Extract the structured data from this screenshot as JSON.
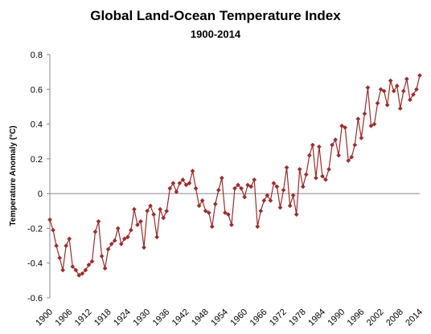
{
  "colors": {
    "series": "#9c2b2b",
    "axis": "#888888"
  },
  "chart_data": {
    "type": "line",
    "title": "Global Land-Ocean Temperature Index",
    "subtitle": "1900-2014",
    "xlabel": "",
    "ylabel": "Temperature Anomaly (°C)",
    "ylim": [
      -0.6,
      0.8
    ],
    "yticks": [
      "-0.6",
      "-0.4",
      "-0.2",
      "0",
      "0.2",
      "0.4",
      "0.6",
      "0.8"
    ],
    "xlim": [
      1900,
      2014
    ],
    "xticks": [
      "1900",
      "1906",
      "1912",
      "1918",
      "1924",
      "1930",
      "1936",
      "1942",
      "1948",
      "1954",
      "1960",
      "1966",
      "1972",
      "1978",
      "1984",
      "1990",
      "1996",
      "2002",
      "2008",
      "2014"
    ],
    "grid": false,
    "legend": "none",
    "series": [
      {
        "x": [
          1900,
          1901,
          1902,
          1903,
          1904,
          1905,
          1906,
          1907,
          1908,
          1909,
          1910,
          1911,
          1912,
          1913,
          1914,
          1915,
          1916,
          1917,
          1918,
          1919,
          1920,
          1921,
          1922,
          1923,
          1924,
          1925,
          1926,
          1927,
          1928,
          1929,
          1930,
          1931,
          1932,
          1933,
          1934,
          1935,
          1936,
          1937,
          1938,
          1939,
          1940,
          1941,
          1942,
          1943,
          1944,
          1945,
          1946,
          1947,
          1948,
          1949,
          1950,
          1951,
          1952,
          1953,
          1954,
          1955,
          1956,
          1957,
          1958,
          1959,
          1960,
          1961,
          1962,
          1963,
          1964,
          1965,
          1966,
          1967,
          1968,
          1969,
          1970,
          1971,
          1972,
          1973,
          1974,
          1975,
          1976,
          1977,
          1978,
          1979,
          1980,
          1981,
          1982,
          1983,
          1984,
          1985,
          1986,
          1987,
          1988,
          1989,
          1990,
          1991,
          1992,
          1993,
          1994,
          1995,
          1996,
          1997,
          1998,
          1999,
          2000,
          2001,
          2002,
          2003,
          2004,
          2005,
          2006,
          2007,
          2008,
          2009,
          2010,
          2011,
          2012,
          2013,
          2014
        ],
        "values": [
          -0.15,
          -0.21,
          -0.3,
          -0.37,
          -0.44,
          -0.3,
          -0.26,
          -0.42,
          -0.44,
          -0.47,
          -0.46,
          -0.44,
          -0.41,
          -0.39,
          -0.22,
          -0.16,
          -0.36,
          -0.43,
          -0.32,
          -0.29,
          -0.27,
          -0.2,
          -0.29,
          -0.26,
          -0.25,
          -0.21,
          -0.09,
          -0.18,
          -0.16,
          -0.31,
          -0.1,
          -0.07,
          -0.12,
          -0.25,
          -0.09,
          -0.14,
          -0.1,
          0.03,
          0.06,
          0.01,
          0.06,
          0.08,
          0.05,
          0.06,
          0.13,
          0.03,
          -0.07,
          -0.04,
          -0.1,
          -0.11,
          -0.19,
          -0.06,
          0.02,
          0.09,
          -0.11,
          -0.12,
          -0.18,
          0.03,
          0.05,
          0.03,
          -0.02,
          0.05,
          0.04,
          0.08,
          -0.19,
          -0.1,
          -0.04,
          -0.01,
          -0.04,
          0.06,
          0.04,
          -0.08,
          0.02,
          0.15,
          -0.07,
          -0.01,
          -0.12,
          0.14,
          0.04,
          0.11,
          0.22,
          0.28,
          0.09,
          0.27,
          0.1,
          0.08,
          0.14,
          0.28,
          0.31,
          0.22,
          0.39,
          0.38,
          0.19,
          0.21,
          0.28,
          0.43,
          0.32,
          0.46,
          0.61,
          0.39,
          0.4,
          0.52,
          0.6,
          0.59,
          0.51,
          0.65,
          0.59,
          0.62,
          0.49,
          0.59,
          0.66,
          0.54,
          0.57,
          0.6,
          0.68
        ]
      }
    ]
  }
}
